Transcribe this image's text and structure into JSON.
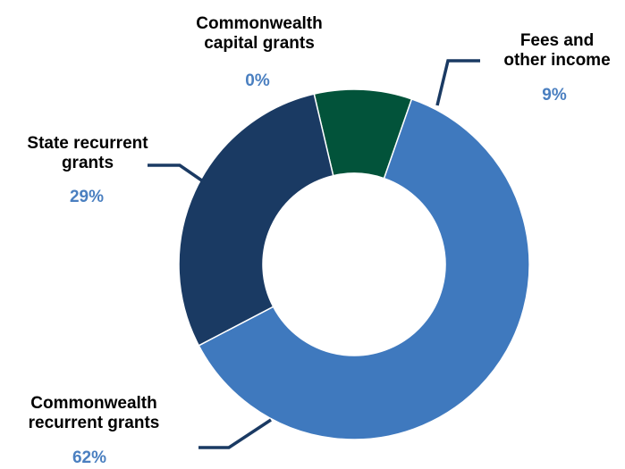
{
  "chart_data": {
    "type": "donut",
    "title": "",
    "start_angle_deg": 346.8,
    "slices": [
      {
        "label_lines": [
          "Fees and",
          "other income"
        ],
        "value": 9,
        "value_label": "9%",
        "color": "#02533a"
      },
      {
        "label_lines": [
          "Commonwealth",
          "recurrent grants"
        ],
        "value": 62,
        "value_label": "62%",
        "color": "#3f79be"
      },
      {
        "label_lines": [
          "State recurrent",
          "grants"
        ],
        "value": 29,
        "value_label": "29%",
        "color": "#1a3a63"
      },
      {
        "label_lines": [
          "Commonwealth",
          "capital grants"
        ],
        "value": 0,
        "value_label": "0%",
        "color": "#1a3a63"
      }
    ],
    "label_value_color": "#4a7fc0",
    "leader_line_color": "#1a3a63"
  }
}
